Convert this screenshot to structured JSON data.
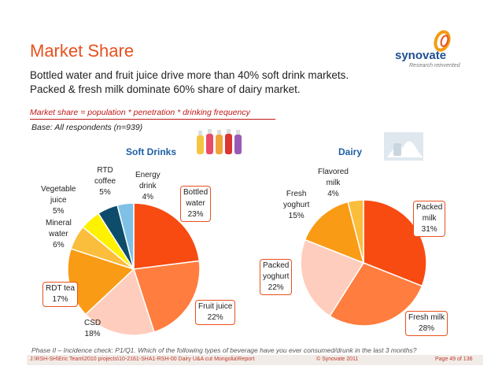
{
  "header": {
    "title": "Market Share",
    "subtitle_line1": "Bottled water and fruit juice drive more than 40% soft drink markets.",
    "subtitle_line2": "Packed & fresh milk dominate 60% share of dairy market.",
    "formula": "Market share = population * penetration * drinking frequency",
    "base": "Base: All respondents (n=939)"
  },
  "logo": {
    "word": "synovate",
    "tagline": "Research reinvented"
  },
  "chart_data": [
    {
      "type": "pie",
      "title": "Soft Drinks",
      "slices": [
        {
          "label": "Bottled\nwater\n23%",
          "value": 23,
          "color": "#f84b12"
        },
        {
          "label": "Fruit juice\n22%",
          "value": 22,
          "color": "#ff7d3e"
        },
        {
          "label": "CSD\n18%",
          "value": 18,
          "color": "#ffcdbd"
        },
        {
          "label": "RDT tea\n17%",
          "value": 17,
          "color": "#f99b14"
        },
        {
          "label": "Mineral\nwater\n6%",
          "value": 6,
          "color": "#fbbd3c"
        },
        {
          "label": "Vegetable\njuice\n5%",
          "value": 5,
          "color": "#fff200"
        },
        {
          "label": "RTD\ncoffee\n5%",
          "value": 5,
          "color": "#0d4d6b"
        },
        {
          "label": "Energy\ndrink\n4%",
          "value": 4,
          "color": "#7fc1e6"
        }
      ]
    },
    {
      "type": "pie",
      "title": "Dairy",
      "slices": [
        {
          "label": "Packed\nmilk\n31%",
          "value": 31,
          "color": "#f84b12"
        },
        {
          "label": "Fresh milk\n28%",
          "value": 28,
          "color": "#ff7d3e"
        },
        {
          "label": "Packed\nyoghurt\n22%",
          "value": 22,
          "color": "#ffcdbd"
        },
        {
          "label": "Fresh\nyoghurt\n15%",
          "value": 15,
          "color": "#f99b14"
        },
        {
          "label": "Flavored\nmilk\n4%",
          "value": 4,
          "color": "#fbbd3c"
        }
      ]
    }
  ],
  "footer": {
    "question": "Phase II – Incidence check: P1/Q1. Which of the following types of beverage have you ever consumed/drunk in the last 3 months?",
    "path": "J:\\RSH-SH\\Eric Team\\2010 projects\\10-2161-SHA1-RSH-00 Dairy U&A cut Mongolia\\Report",
    "copyright": "© Synovate 2011",
    "page": "Page 49 of 136"
  }
}
